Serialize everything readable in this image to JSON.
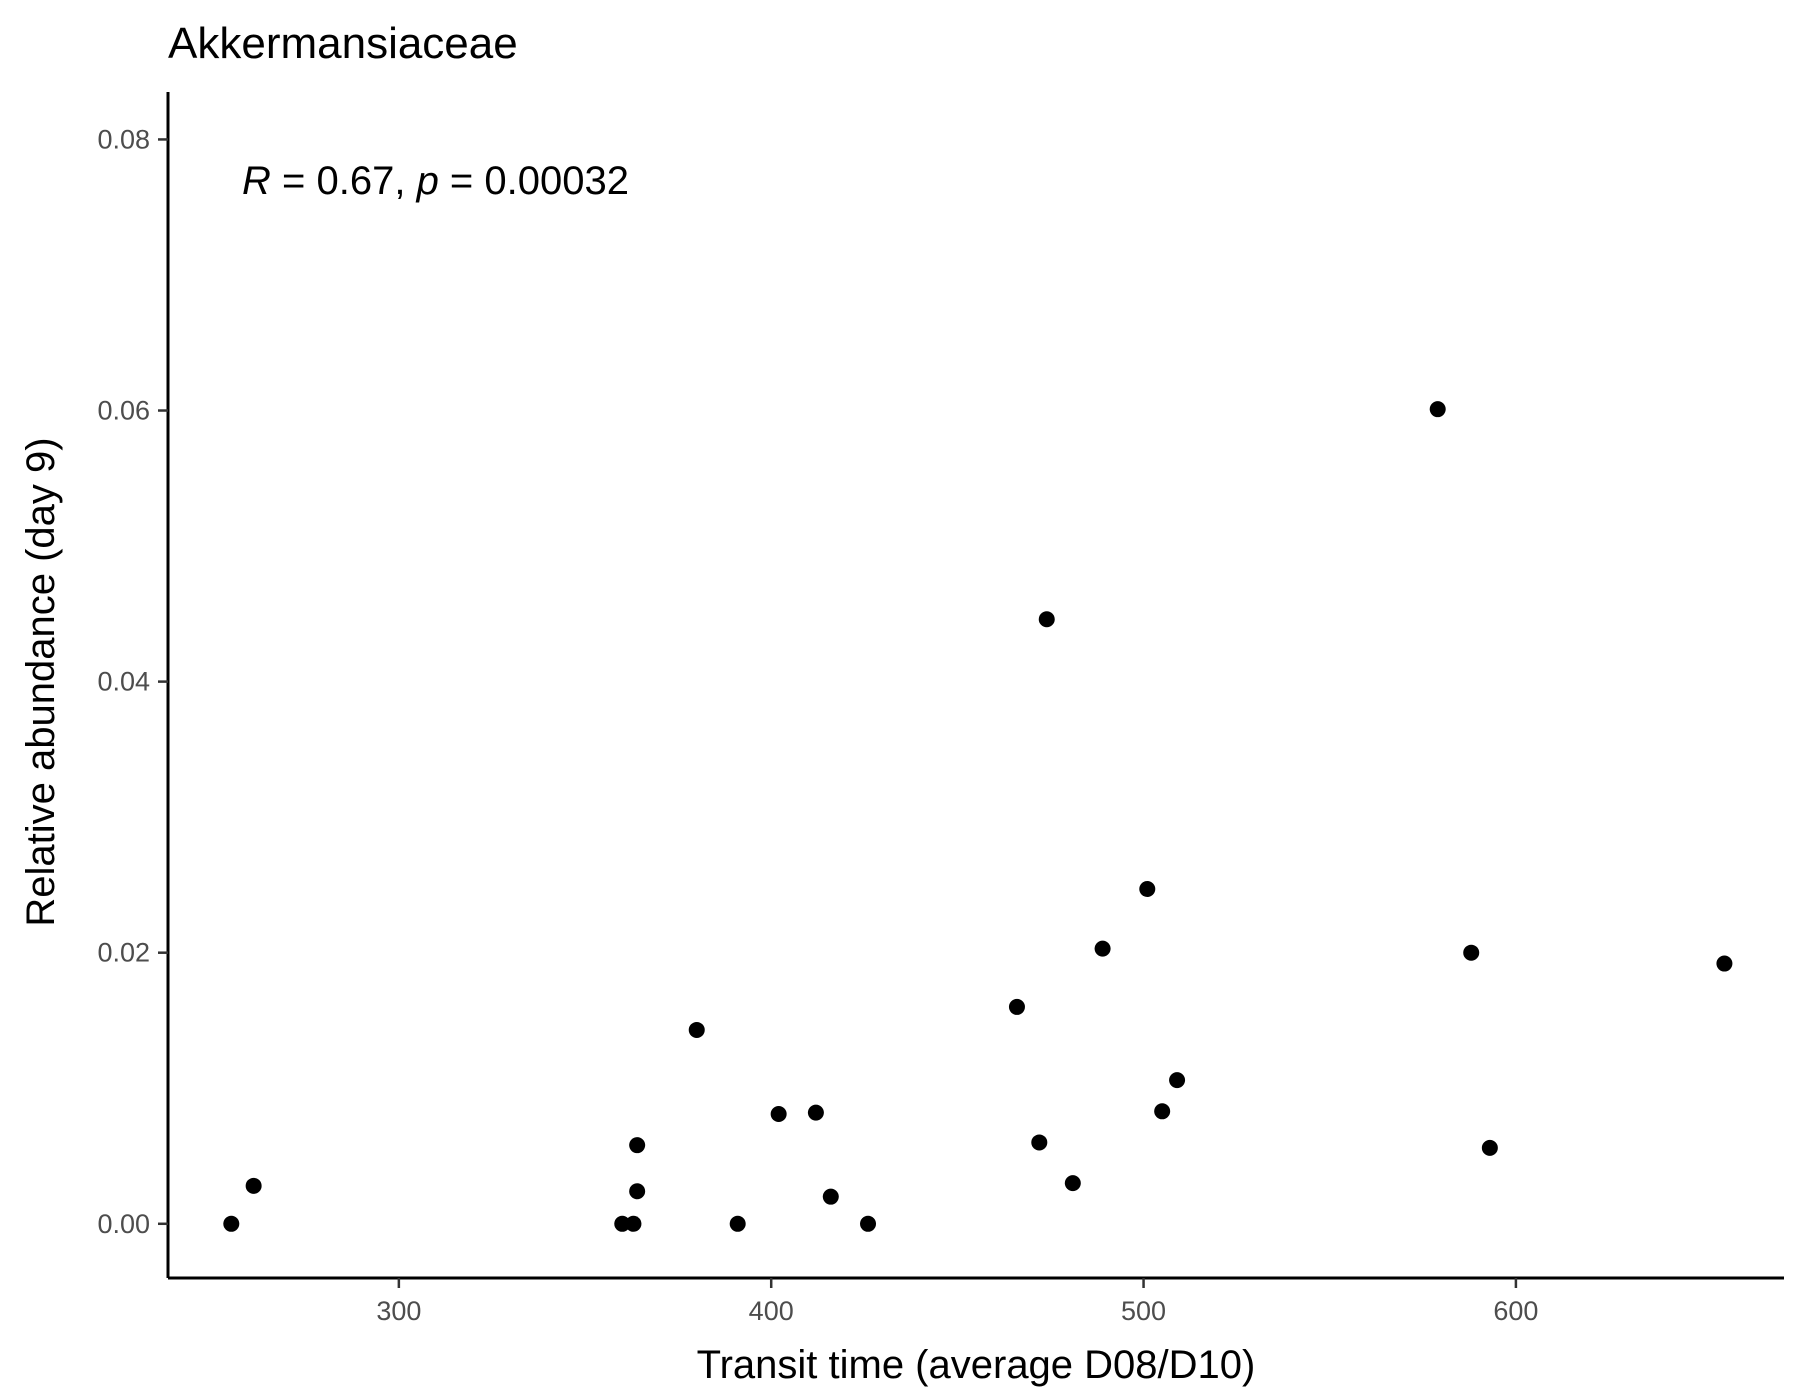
{
  "chart_data": {
    "type": "scatter",
    "title": "Akkermansiaceae",
    "xlabel": "Transit time (average D08/D10)",
    "ylabel": "Relative abundance (day 9)",
    "xlim": [
      238,
      672
    ],
    "ylim": [
      -0.004,
      0.0835
    ],
    "xticks": [
      300,
      400,
      500,
      600
    ],
    "xtick_labels": [
      "300",
      "400",
      "500",
      "600"
    ],
    "yticks": [
      0.0,
      0.02,
      0.04,
      0.06,
      0.08
    ],
    "ytick_labels": [
      "0.00",
      "0.02",
      "0.04",
      "0.06",
      "0.08"
    ],
    "grid": false,
    "annotation": {
      "r_symbol": "R",
      "r_value": " = 0.67, ",
      "p_symbol": "p",
      "p_value": " = 0.00032"
    },
    "point_color": "#000000",
    "points": [
      {
        "x": 255,
        "y": 0.0
      },
      {
        "x": 261,
        "y": 0.0028
      },
      {
        "x": 360,
        "y": 0.0
      },
      {
        "x": 363,
        "y": 0.0
      },
      {
        "x": 364,
        "y": 0.0058
      },
      {
        "x": 364,
        "y": 0.0024
      },
      {
        "x": 380,
        "y": 0.0143
      },
      {
        "x": 391,
        "y": 0.0
      },
      {
        "x": 402,
        "y": 0.0081
      },
      {
        "x": 412,
        "y": 0.0082
      },
      {
        "x": 416,
        "y": 0.002
      },
      {
        "x": 426,
        "y": 0.0
      },
      {
        "x": 466,
        "y": 0.016
      },
      {
        "x": 472,
        "y": 0.006
      },
      {
        "x": 474,
        "y": 0.0446
      },
      {
        "x": 481,
        "y": 0.003
      },
      {
        "x": 489,
        "y": 0.0203
      },
      {
        "x": 501,
        "y": 0.0247
      },
      {
        "x": 505,
        "y": 0.0083
      },
      {
        "x": 509,
        "y": 0.0106
      },
      {
        "x": 579,
        "y": 0.0601
      },
      {
        "x": 588,
        "y": 0.02
      },
      {
        "x": 593,
        "y": 0.0056
      },
      {
        "x": 656,
        "y": 0.0192
      }
    ]
  }
}
